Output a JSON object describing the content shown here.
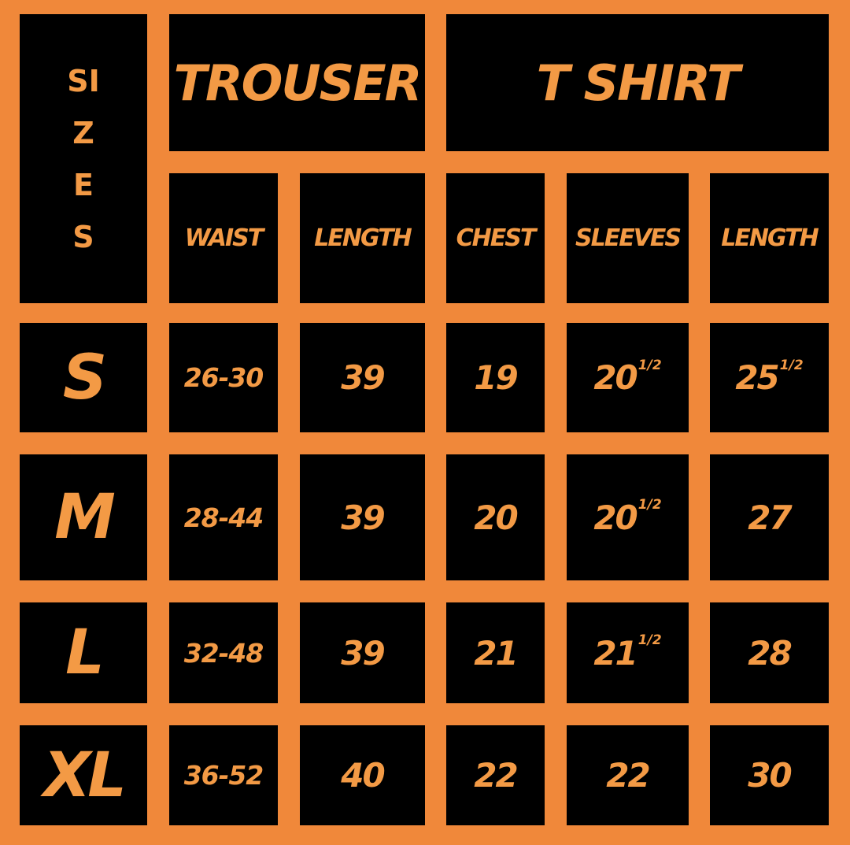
{
  "header": {
    "sizes_label": "SIZES",
    "trouser": "TROUSER",
    "tshirt": "T SHIRT"
  },
  "columns": [
    "WAIST",
    "LENGTH",
    "CHEST",
    "SLEEVES",
    "LENGTH"
  ],
  "rows": [
    {
      "size": "S",
      "values": [
        {
          "v": "26-30"
        },
        {
          "v": "39"
        },
        {
          "v": "19"
        },
        {
          "v": "20",
          "frac": "1/2"
        },
        {
          "v": "25",
          "frac": "1/2"
        }
      ]
    },
    {
      "size": "M",
      "values": [
        {
          "v": "28-44"
        },
        {
          "v": "39"
        },
        {
          "v": "20"
        },
        {
          "v": "20",
          "frac": "1/2"
        },
        {
          "v": "27"
        }
      ]
    },
    {
      "size": "L",
      "values": [
        {
          "v": "32-48"
        },
        {
          "v": "39"
        },
        {
          "v": "21"
        },
        {
          "v": "21",
          "frac": "1/2"
        },
        {
          "v": "28"
        }
      ]
    },
    {
      "size": "XL",
      "values": [
        {
          "v": "36-52"
        },
        {
          "v": "40"
        },
        {
          "v": "22"
        },
        {
          "v": "22"
        },
        {
          "v": "30"
        }
      ]
    }
  ],
  "colors": {
    "background": "#F0883A",
    "cell": "#000000",
    "text": "#F39A45"
  }
}
